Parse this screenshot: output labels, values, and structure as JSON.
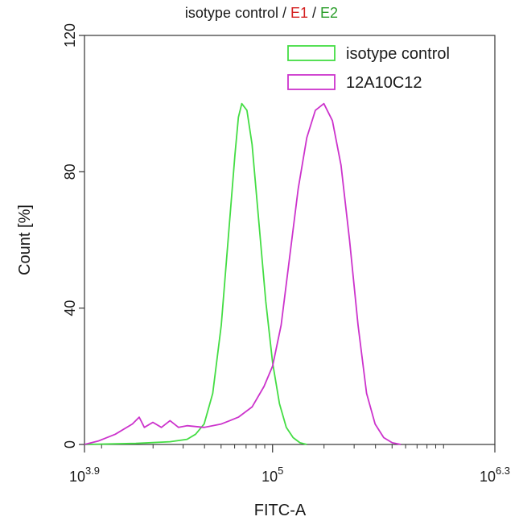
{
  "title": {
    "prefix": "isotype control / ",
    "e1": "E1",
    "sep": " / ",
    "e2": "E2",
    "e1_color": "#d42020",
    "e2_color": "#2a9d2a"
  },
  "chart_data": {
    "type": "line",
    "xlabel": "FITC-A",
    "ylabel": "Count  [%]",
    "x_scale": "log10",
    "xlim": [
      3.9,
      6.3
    ],
    "ylim": [
      0,
      120
    ],
    "x_ticks": [
      {
        "value": 3.9,
        "base": "10",
        "exp": "3.9"
      },
      {
        "value": 5.0,
        "base": "10",
        "exp": "5"
      },
      {
        "value": 6.3,
        "base": "10",
        "exp": "6.3"
      }
    ],
    "y_ticks": [
      0,
      40,
      80,
      120
    ],
    "grid": false,
    "legend_position": "top-right",
    "series": [
      {
        "name": "isotype control",
        "color": "#44dd44",
        "points": [
          [
            3.9,
            0
          ],
          [
            4.2,
            0.3
          ],
          [
            4.4,
            0.8
          ],
          [
            4.5,
            1.5
          ],
          [
            4.55,
            3
          ],
          [
            4.6,
            6
          ],
          [
            4.65,
            15
          ],
          [
            4.7,
            35
          ],
          [
            4.74,
            60
          ],
          [
            4.78,
            85
          ],
          [
            4.8,
            96
          ],
          [
            4.82,
            100
          ],
          [
            4.85,
            98
          ],
          [
            4.88,
            88
          ],
          [
            4.92,
            65
          ],
          [
            4.96,
            42
          ],
          [
            5.0,
            24
          ],
          [
            5.04,
            12
          ],
          [
            5.08,
            5
          ],
          [
            5.12,
            2
          ],
          [
            5.16,
            0.5
          ],
          [
            5.2,
            0
          ]
        ]
      },
      {
        "name": "12A10C12",
        "color": "#cc33cc",
        "points": [
          [
            3.9,
            0
          ],
          [
            3.98,
            1
          ],
          [
            4.08,
            3
          ],
          [
            4.18,
            6
          ],
          [
            4.22,
            8
          ],
          [
            4.25,
            5
          ],
          [
            4.3,
            6.5
          ],
          [
            4.35,
            5
          ],
          [
            4.4,
            7
          ],
          [
            4.45,
            5
          ],
          [
            4.5,
            5.5
          ],
          [
            4.6,
            5
          ],
          [
            4.7,
            6
          ],
          [
            4.75,
            7
          ],
          [
            4.8,
            8
          ],
          [
            4.88,
            11
          ],
          [
            4.95,
            17
          ],
          [
            5.0,
            23
          ],
          [
            5.05,
            35
          ],
          [
            5.1,
            55
          ],
          [
            5.15,
            75
          ],
          [
            5.2,
            90
          ],
          [
            5.25,
            98
          ],
          [
            5.3,
            100
          ],
          [
            5.35,
            95
          ],
          [
            5.4,
            82
          ],
          [
            5.45,
            60
          ],
          [
            5.5,
            35
          ],
          [
            5.55,
            15
          ],
          [
            5.6,
            6
          ],
          [
            5.65,
            2
          ],
          [
            5.7,
            0.5
          ],
          [
            5.75,
            0
          ]
        ]
      }
    ]
  }
}
